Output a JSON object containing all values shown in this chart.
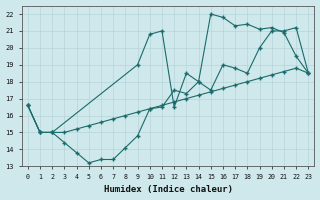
{
  "xlabel": "Humidex (Indice chaleur)",
  "xlim": [
    -0.5,
    23.5
  ],
  "ylim": [
    13,
    22.5
  ],
  "xticks": [
    0,
    1,
    2,
    3,
    4,
    5,
    6,
    7,
    8,
    9,
    10,
    11,
    12,
    13,
    14,
    15,
    16,
    17,
    18,
    19,
    20,
    21,
    22,
    23
  ],
  "yticks": [
    13,
    14,
    15,
    16,
    17,
    18,
    19,
    20,
    21,
    22
  ],
  "bg_color": "#cfe8ec",
  "line_color": "#1a6b6b",
  "grid_color": "#b8d4d8",
  "line1_x": [
    0,
    1,
    2,
    3,
    4,
    5,
    6,
    7,
    8,
    9,
    10,
    11,
    12,
    13,
    14,
    15,
    16,
    17,
    18,
    19,
    20,
    21,
    22,
    23
  ],
  "line1_y": [
    16.6,
    15.0,
    15.0,
    14.4,
    13.8,
    13.2,
    13.4,
    13.4,
    14.1,
    14.8,
    16.4,
    16.5,
    17.5,
    17.3,
    18.0,
    17.5,
    19.0,
    18.8,
    18.5,
    20.0,
    21.0,
    21.0,
    21.2,
    18.5
  ],
  "line2_x": [
    0,
    1,
    2,
    3,
    4,
    5,
    6,
    7,
    8,
    9,
    10,
    11,
    12,
    13,
    14,
    15,
    16,
    17,
    18,
    19,
    20,
    21,
    22,
    23
  ],
  "line2_y": [
    16.6,
    15.0,
    15.0,
    15.0,
    15.2,
    15.4,
    15.6,
    15.8,
    16.0,
    16.2,
    16.4,
    16.6,
    16.8,
    17.0,
    17.2,
    17.4,
    17.6,
    17.8,
    18.0,
    18.2,
    18.4,
    18.6,
    18.8,
    18.5
  ],
  "line3_x": [
    0,
    1,
    2,
    9,
    10,
    11,
    12,
    13,
    14,
    15,
    16,
    17,
    18,
    19,
    20,
    21,
    22,
    23
  ],
  "line3_y": [
    16.6,
    15.0,
    15.0,
    19.0,
    20.8,
    21.0,
    16.5,
    18.5,
    18.0,
    22.0,
    21.8,
    21.3,
    21.4,
    21.1,
    21.2,
    20.9,
    19.5,
    18.5
  ]
}
